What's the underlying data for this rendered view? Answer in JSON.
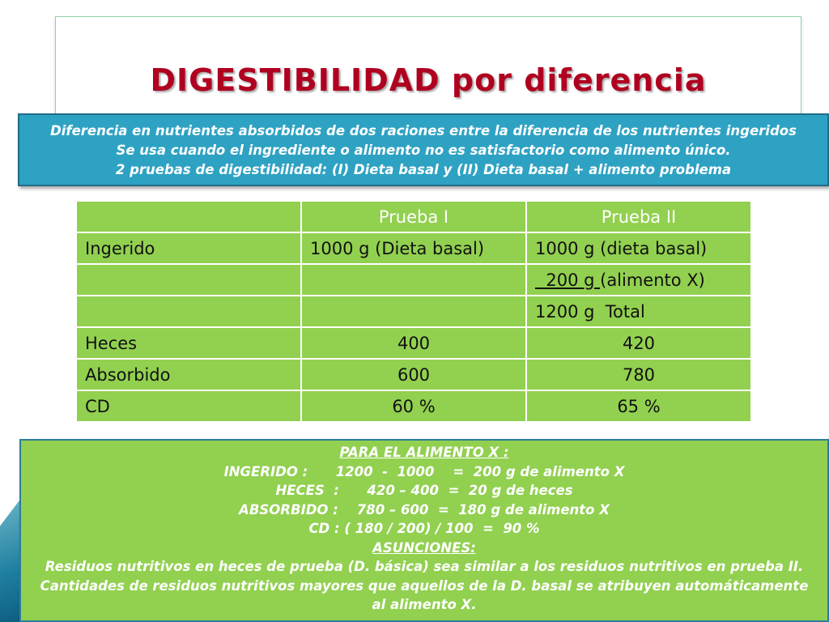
{
  "title": "DIGESTIBILIDAD por diferencia",
  "intro_lines": [
    "Diferencia en nutrientes absorbidos de dos raciones entre la diferencia de los nutrientes ingeridos",
    "Se usa cuando el ingrediente o alimento no es satisfactorio como alimento único.",
    "2 pruebas de digestibilidad: (I) Dieta basal y (II) Dieta basal + alimento problema"
  ],
  "table": {
    "headers": [
      "",
      "Prueba I",
      "Prueba II"
    ],
    "rows": [
      [
        "Ingerido",
        "1000 g (Dieta basal)",
        "1000 g (dieta basal)"
      ],
      [
        "",
        "",
        "  200 g (alimento X)"
      ],
      [
        "",
        "",
        "1200 g  Total"
      ],
      [
        "Heces",
        "400",
        "420"
      ],
      [
        "Absorbido",
        "600",
        "780"
      ],
      [
        "CD",
        "60 %",
        "65 %"
      ]
    ],
    "row2_col3_underlined": "  200 g ",
    "row2_col3_rest": "(alimento X)"
  },
  "summary": {
    "heading": "PARA EL ALIMENTO X :",
    "lines": [
      "INGERIDO :      1200  -  1000    =  200 g de alimento X",
      "HECES  :      420 – 400  =  20 g de heces",
      "ABSORBIDO :    780 – 600  =  180 g de alimento X",
      "CD : ( 180 / 200) / 100  =  90 %"
    ],
    "assumptions_heading": "ASUNCIONES:",
    "assumptions": [
      "Residuos nutritivos en heces de prueba (D. básica) sea similar a los residuos nutritivos en prueba II.",
      "Cantidades de residuos nutritivos mayores que aquellos de la D. basal se atribuyen automáticamente",
      "al alimento X."
    ]
  },
  "colors": {
    "title": "#b00020",
    "blue_box": "#2ea2c3",
    "green": "#92d050"
  }
}
